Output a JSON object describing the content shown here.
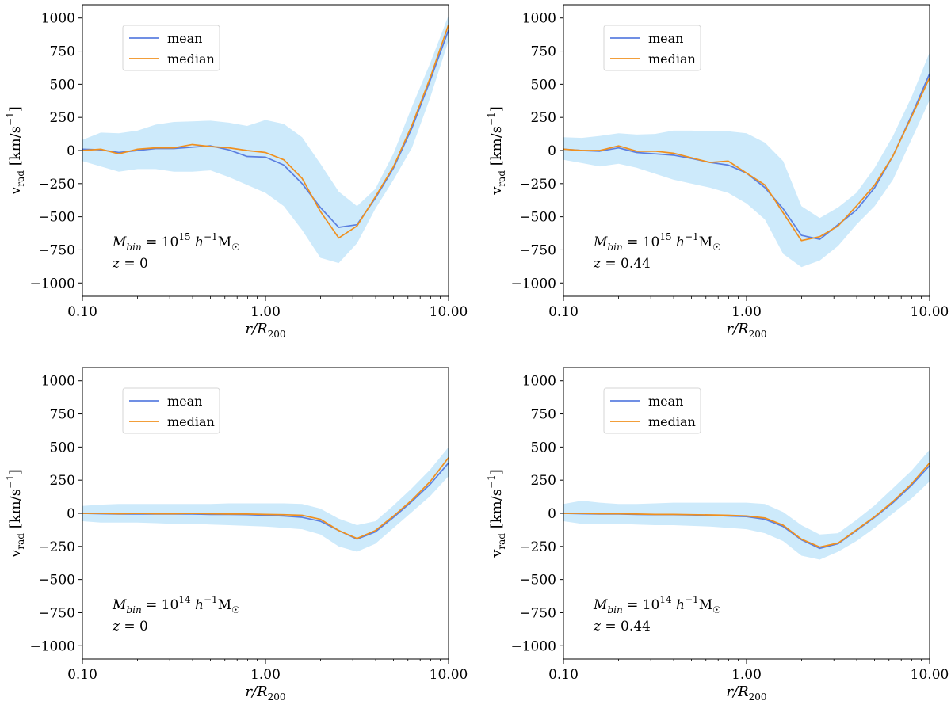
{
  "chart_data": [
    {
      "type": "line",
      "panel": "top-left",
      "xscale": "log",
      "xlim": [
        0.1,
        10
      ],
      "ylim": [
        -1100,
        1100
      ],
      "xticks": [
        0.1,
        1,
        10
      ],
      "xtick_labels": [
        "0.10",
        "1.00",
        "10.00"
      ],
      "yticks": [
        1000,
        750,
        500,
        250,
        0,
        -250,
        -500,
        -750,
        -1000
      ],
      "ytick_labels": [
        "1000",
        "750",
        "500",
        "250",
        "0",
        "−250",
        "−500",
        "−750",
        "−1000"
      ],
      "xlabel": "r/R200",
      "ylabel": "vrad [km/s−1]",
      "legend": [
        "mean",
        "median"
      ],
      "legend_position": "upper-left",
      "annotation": {
        "mass_label": "Mbin = 10^15 h^-1 M☉",
        "redshift_label": "z = 0"
      },
      "x": [
        0.1,
        0.126,
        0.158,
        0.2,
        0.251,
        0.316,
        0.398,
        0.501,
        0.631,
        0.794,
        1.0,
        1.259,
        1.585,
        1.995,
        2.512,
        3.162,
        3.981,
        5.012,
        6.31,
        7.943,
        10.0
      ],
      "series": [
        {
          "name": "mean",
          "values": [
            10,
            5,
            -15,
            0,
            15,
            15,
            25,
            35,
            5,
            -45,
            -50,
            -110,
            -250,
            -430,
            -580,
            -560,
            -360,
            -130,
            170,
            530,
            910
          ]
        },
        {
          "name": "median",
          "values": [
            0,
            10,
            -25,
            10,
            20,
            20,
            45,
            30,
            20,
            0,
            -15,
            -70,
            -210,
            -460,
            -660,
            -570,
            -350,
            -120,
            190,
            550,
            950
          ]
        },
        {
          "name": "band_upper",
          "values": [
            80,
            135,
            130,
            150,
            195,
            215,
            220,
            225,
            210,
            185,
            230,
            200,
            100,
            -100,
            -310,
            -420,
            -290,
            -20,
            330,
            660,
            1020
          ]
        },
        {
          "name": "band_lower",
          "values": [
            -80,
            -120,
            -160,
            -140,
            -140,
            -160,
            -160,
            -150,
            -200,
            -260,
            -320,
            -420,
            -600,
            -810,
            -850,
            -700,
            -440,
            -220,
            20,
            400,
            830
          ]
        }
      ]
    },
    {
      "type": "line",
      "panel": "top-right",
      "xscale": "log",
      "xlim": [
        0.1,
        10
      ],
      "ylim": [
        -1100,
        1100
      ],
      "xticks": [
        0.1,
        1,
        10
      ],
      "xtick_labels": [
        "0.10",
        "1.00",
        "10.00"
      ],
      "yticks": [
        1000,
        750,
        500,
        250,
        0,
        -250,
        -500,
        -750,
        -1000
      ],
      "ytick_labels": [
        "1000",
        "750",
        "500",
        "250",
        "0",
        "−250",
        "−500",
        "−750",
        "−1000"
      ],
      "xlabel": "r/R200",
      "ylabel": "vrad [km/s−1]",
      "legend": [
        "mean",
        "median"
      ],
      "legend_position": "upper-left",
      "annotation": {
        "mass_label": "Mbin = 10^15 h^-1 M☉",
        "redshift_label": "z = 0.44"
      },
      "x": [
        0.1,
        0.126,
        0.158,
        0.2,
        0.251,
        0.316,
        0.398,
        0.501,
        0.631,
        0.794,
        1.0,
        1.259,
        1.585,
        1.995,
        2.512,
        3.162,
        3.981,
        5.012,
        6.31,
        7.943,
        10.0
      ],
      "series": [
        {
          "name": "mean",
          "values": [
            10,
            0,
            -5,
            20,
            -15,
            -25,
            -35,
            -60,
            -90,
            -110,
            -170,
            -280,
            -440,
            -640,
            -670,
            -560,
            -450,
            -280,
            -40,
            260,
            580
          ]
        },
        {
          "name": "median",
          "values": [
            10,
            0,
            0,
            35,
            -5,
            -5,
            -20,
            -55,
            -90,
            -80,
            -170,
            -260,
            -470,
            -680,
            -650,
            -570,
            -420,
            -260,
            -40,
            250,
            550
          ]
        },
        {
          "name": "band_upper",
          "values": [
            100,
            95,
            110,
            130,
            120,
            125,
            150,
            150,
            145,
            145,
            130,
            60,
            -80,
            -420,
            -510,
            -430,
            -320,
            -130,
            110,
            400,
            740
          ]
        },
        {
          "name": "band_lower",
          "values": [
            -70,
            -95,
            -120,
            -100,
            -130,
            -175,
            -220,
            -250,
            -280,
            -320,
            -400,
            -520,
            -780,
            -880,
            -830,
            -720,
            -560,
            -420,
            -220,
            80,
            380
          ]
        }
      ]
    },
    {
      "type": "line",
      "panel": "bottom-left",
      "xscale": "log",
      "xlim": [
        0.1,
        10
      ],
      "ylim": [
        -1100,
        1100
      ],
      "xticks": [
        0.1,
        1,
        10
      ],
      "xtick_labels": [
        "0.10",
        "1.00",
        "10.00"
      ],
      "yticks": [
        1000,
        750,
        500,
        250,
        0,
        -250,
        -500,
        -750,
        -1000
      ],
      "ytick_labels": [
        "1000",
        "750",
        "500",
        "250",
        "0",
        "−250",
        "−500",
        "−750",
        "−1000"
      ],
      "xlabel": "r/R200",
      "ylabel": "vrad [km/s−1]",
      "legend": [
        "mean",
        "median"
      ],
      "legend_position": "upper-left",
      "annotation": {
        "mass_label": "Mbin = 10^14 h^-1 M☉",
        "redshift_label": "z = 0"
      },
      "x": [
        0.1,
        0.126,
        0.158,
        0.2,
        0.251,
        0.316,
        0.398,
        0.501,
        0.631,
        0.794,
        1.0,
        1.259,
        1.585,
        1.995,
        2.512,
        3.162,
        3.981,
        5.012,
        6.31,
        7.943,
        10.0
      ],
      "series": [
        {
          "name": "mean",
          "values": [
            0,
            -3,
            -5,
            -5,
            -5,
            -5,
            -5,
            -8,
            -8,
            -10,
            -15,
            -20,
            -30,
            -60,
            -130,
            -195,
            -140,
            -30,
            90,
            220,
            380
          ]
        },
        {
          "name": "median",
          "values": [
            0,
            0,
            -3,
            0,
            -3,
            -3,
            0,
            -3,
            -5,
            -5,
            -8,
            -10,
            -15,
            -45,
            -130,
            -190,
            -130,
            -20,
            100,
            240,
            420
          ]
        },
        {
          "name": "band_upper",
          "values": [
            55,
            65,
            70,
            70,
            70,
            70,
            70,
            70,
            75,
            75,
            75,
            75,
            70,
            35,
            -40,
            -90,
            -60,
            60,
            190,
            330,
            500
          ]
        },
        {
          "name": "band_lower",
          "values": [
            -60,
            -70,
            -70,
            -70,
            -75,
            -80,
            -80,
            -85,
            -90,
            -95,
            -100,
            -110,
            -120,
            -160,
            -250,
            -290,
            -230,
            -110,
            10,
            130,
            280
          ]
        }
      ]
    },
    {
      "type": "line",
      "panel": "bottom-right",
      "xscale": "log",
      "xlim": [
        0.1,
        10
      ],
      "ylim": [
        -1100,
        1100
      ],
      "xticks": [
        0.1,
        1,
        10
      ],
      "xtick_labels": [
        "0.10",
        "1.00",
        "10.00"
      ],
      "yticks": [
        1000,
        750,
        500,
        250,
        0,
        -250,
        -500,
        -750,
        -1000
      ],
      "ytick_labels": [
        "1000",
        "750",
        "500",
        "250",
        "0",
        "−250",
        "−500",
        "−750",
        "−1000"
      ],
      "xlabel": "r/R200",
      "ylabel": "vrad [km/s−1]",
      "legend": [
        "mean",
        "median"
      ],
      "legend_position": "upper-left",
      "annotation": {
        "mass_label": "Mbin = 10^14 h^-1 M☉",
        "redshift_label": "z = 0.44"
      },
      "x": [
        0.1,
        0.126,
        0.158,
        0.2,
        0.251,
        0.316,
        0.398,
        0.501,
        0.631,
        0.794,
        1.0,
        1.259,
        1.585,
        1.995,
        2.512,
        3.162,
        3.981,
        5.012,
        6.31,
        7.943,
        10.0
      ],
      "series": [
        {
          "name": "mean",
          "values": [
            0,
            -3,
            -5,
            -5,
            -8,
            -10,
            -10,
            -12,
            -15,
            -20,
            -25,
            -45,
            -100,
            -200,
            -265,
            -230,
            -130,
            -30,
            80,
            210,
            360
          ]
        },
        {
          "name": "median",
          "values": [
            0,
            0,
            -3,
            -3,
            -5,
            -8,
            -8,
            -10,
            -12,
            -15,
            -20,
            -35,
            -90,
            -195,
            -255,
            -225,
            -125,
            -25,
            90,
            220,
            380
          ]
        },
        {
          "name": "band_upper",
          "values": [
            70,
            95,
            80,
            70,
            70,
            75,
            80,
            80,
            80,
            80,
            80,
            70,
            10,
            -90,
            -160,
            -150,
            -50,
            60,
            190,
            320,
            480
          ]
        },
        {
          "name": "band_lower",
          "values": [
            -60,
            -80,
            -80,
            -80,
            -85,
            -90,
            -90,
            -95,
            -100,
            -110,
            -120,
            -150,
            -210,
            -320,
            -350,
            -290,
            -210,
            -110,
            0,
            110,
            240
          ]
        }
      ]
    }
  ],
  "colors": {
    "mean": "#5b7fe0",
    "median": "#f0901e",
    "band": "#cdeafb",
    "axis": "#000000"
  }
}
